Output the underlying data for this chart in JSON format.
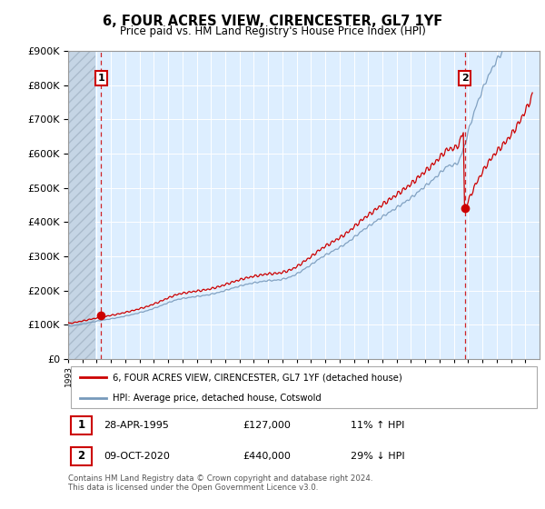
{
  "title": "6, FOUR ACRES VIEW, CIRENCESTER, GL7 1YF",
  "subtitle": "Price paid vs. HM Land Registry's House Price Index (HPI)",
  "footnote": "Contains HM Land Registry data © Crown copyright and database right 2024.\nThis data is licensed under the Open Government Licence v3.0.",
  "legend_line1": "6, FOUR ACRES VIEW, CIRENCESTER, GL7 1YF (detached house)",
  "legend_line2": "HPI: Average price, detached house, Cotswold",
  "transaction1_date": "28-APR-1995",
  "transaction1_price": "£127,000",
  "transaction1_hpi": "11% ↑ HPI",
  "transaction2_date": "09-OCT-2020",
  "transaction2_price": "£440,000",
  "transaction2_hpi": "29% ↓ HPI",
  "red_color": "#cc0000",
  "blue_color": "#7799bb",
  "bg_color": "#ddeeff",
  "hatch_facecolor": "#c5d5e5",
  "transaction1_year": 1995.32,
  "transaction2_year": 2020.77,
  "transaction1_price_val": 127000,
  "transaction2_price_val": 440000,
  "ylim": [
    0,
    900000
  ],
  "xlim_start": 1993,
  "xlim_end": 2026
}
